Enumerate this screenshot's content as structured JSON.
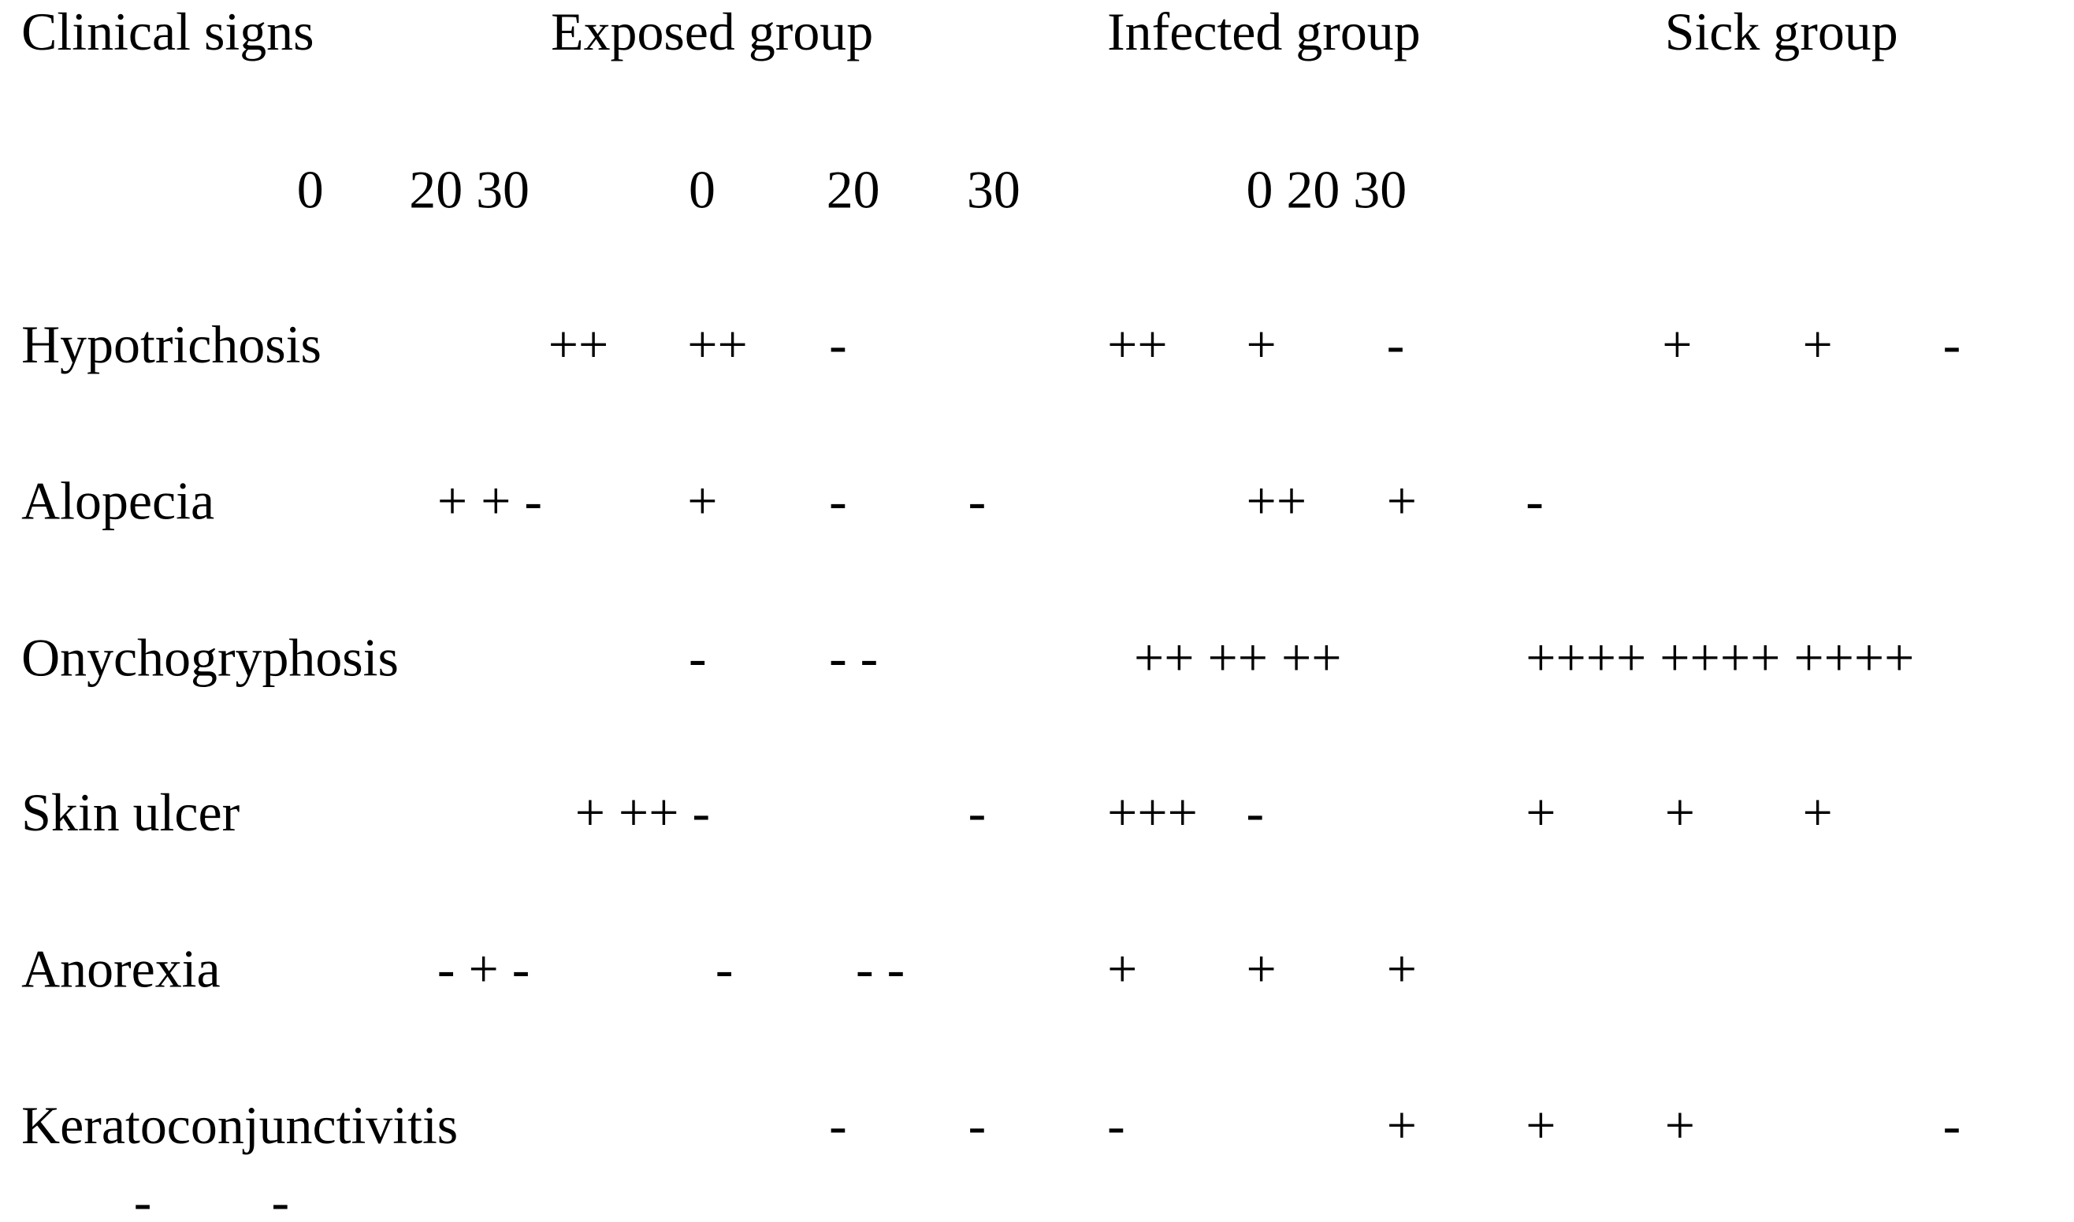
{
  "header": {
    "columns": [
      "Clinical signs",
      "Exposed group",
      "Infected group",
      "Sick group"
    ]
  },
  "timepoints": [
    "0",
    "20 30",
    "0",
    "20",
    "30",
    "0 20 30"
  ],
  "rows": [
    {
      "sign": "Hypotrichosis",
      "scores": [
        "++",
        "++",
        "-",
        "++",
        "+",
        "-",
        "+",
        "+",
        "-"
      ]
    },
    {
      "sign": "Alopecia",
      "scores": [
        "+ + -",
        "+",
        "-",
        "-",
        "++",
        "+",
        "-"
      ]
    },
    {
      "sign": "Onychogryphosis",
      "scores": [
        "-",
        "- -",
        "++ ++ ++",
        "++++ ++++ ++++"
      ]
    },
    {
      "sign": "Skin ulcer",
      "scores": [
        "+ ++ -",
        "-",
        "+++",
        "-",
        "+",
        "+",
        "+"
      ]
    },
    {
      "sign": "Anorexia",
      "scores": [
        "- + -",
        "-",
        "- -",
        "+",
        "+",
        "+"
      ]
    },
    {
      "sign": "Keratoconjunctivitis",
      "scores": [
        "-",
        "-",
        "-",
        "+",
        "+",
        "+",
        "-"
      ]
    }
  ],
  "overflow": [
    "-",
    "-"
  ]
}
